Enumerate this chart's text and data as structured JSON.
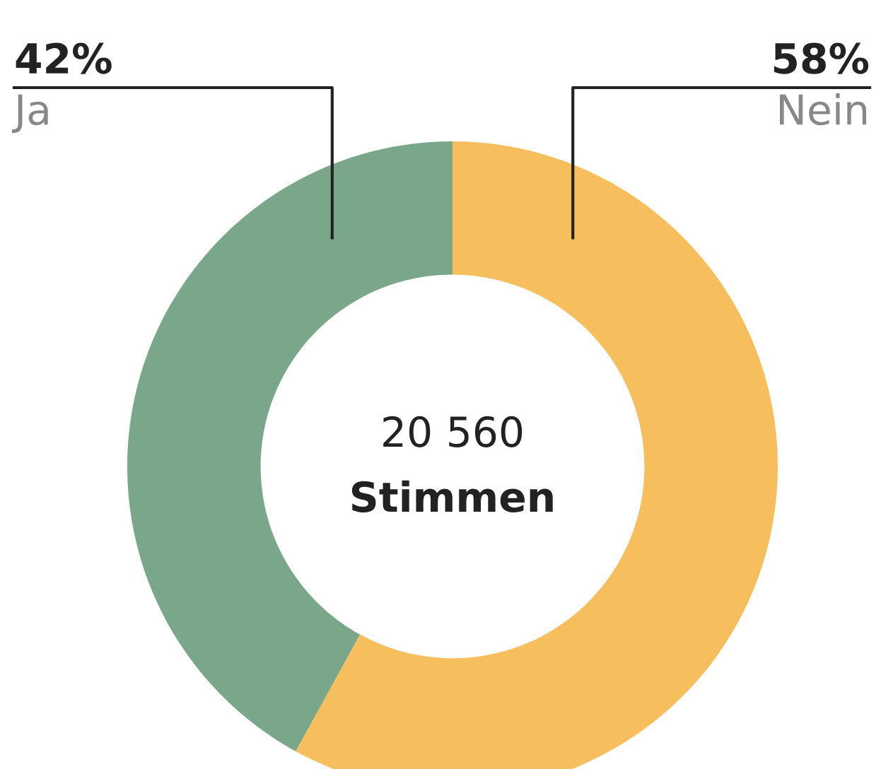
{
  "chart_data": {
    "type": "donut",
    "categories": [
      "Ja",
      "Nein"
    ],
    "values": [
      42,
      58
    ],
    "colors": [
      "#7aa78a",
      "#f6be5c"
    ],
    "value_labels": [
      "42%",
      "58%"
    ],
    "annotations": [
      "20 560",
      "Stimmen"
    ]
  }
}
